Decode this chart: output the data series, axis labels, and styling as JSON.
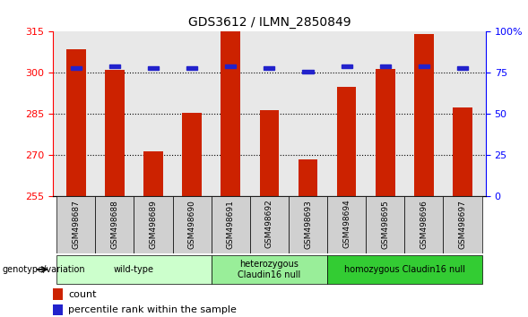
{
  "title": "GDS3612 / ILMN_2850849",
  "samples": [
    "GSM498687",
    "GSM498688",
    "GSM498689",
    "GSM498690",
    "GSM498691",
    "GSM498692",
    "GSM498693",
    "GSM498694",
    "GSM498695",
    "GSM498696",
    "GSM498697"
  ],
  "counts": [
    308.5,
    301.0,
    271.5,
    285.5,
    315.0,
    286.5,
    268.5,
    295.0,
    301.5,
    314.0,
    287.5
  ],
  "percentile_ranks": [
    78,
    79,
    78,
    78,
    79,
    78,
    76,
    79,
    79,
    79,
    78
  ],
  "ylim_left": [
    255,
    315
  ],
  "ylim_right": [
    0,
    100
  ],
  "yticks_left": [
    255,
    270,
    285,
    300,
    315
  ],
  "yticks_right": [
    0,
    25,
    50,
    75,
    100
  ],
  "bar_color": "#cc2200",
  "percentile_color": "#2222cc",
  "plot_bg_color": "#e8e8e8",
  "sample_box_color": "#d0d0d0",
  "groups": [
    {
      "label": "wild-type",
      "start": 0,
      "end": 3,
      "color": "#ccffcc"
    },
    {
      "label": "heterozygous\nClaudin16 null",
      "start": 4,
      "end": 6,
      "color": "#99ee99"
    },
    {
      "label": "homozygous Claudin16 null",
      "start": 7,
      "end": 10,
      "color": "#33cc33"
    }
  ],
  "xlabel_bottom": "genotype/variation",
  "legend_count_label": "count",
  "legend_pct_label": "percentile rank within the sample",
  "grid_lines": [
    270,
    285,
    300
  ]
}
